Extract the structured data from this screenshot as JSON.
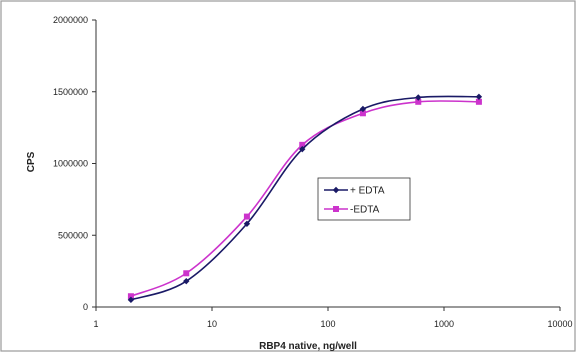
{
  "chart_data": {
    "type": "line",
    "title": "",
    "xlabel": "RBP4 native, ng/well",
    "ylabel": "CPS",
    "x_scale": "log",
    "xlim": [
      1,
      10000
    ],
    "ylim": [
      0,
      2000000
    ],
    "x_ticks": [
      "1",
      "10",
      "100",
      "1000",
      "10000"
    ],
    "y_ticks": [
      "0",
      "500000",
      "1000000",
      "1500000",
      "2000000"
    ],
    "grid": false,
    "legend_position": "center-right",
    "x": [
      2,
      6,
      20,
      60,
      200,
      600,
      2000
    ],
    "series": [
      {
        "name": "+ EDTA",
        "color": "#1a1a66",
        "marker": "diamond",
        "values": [
          50000,
          180000,
          580000,
          1100000,
          1380000,
          1460000,
          1465000
        ]
      },
      {
        "name": "-EDTA",
        "color": "#cc33cc",
        "marker": "square",
        "values": [
          75000,
          235000,
          630000,
          1130000,
          1350000,
          1430000,
          1430000
        ]
      }
    ]
  }
}
